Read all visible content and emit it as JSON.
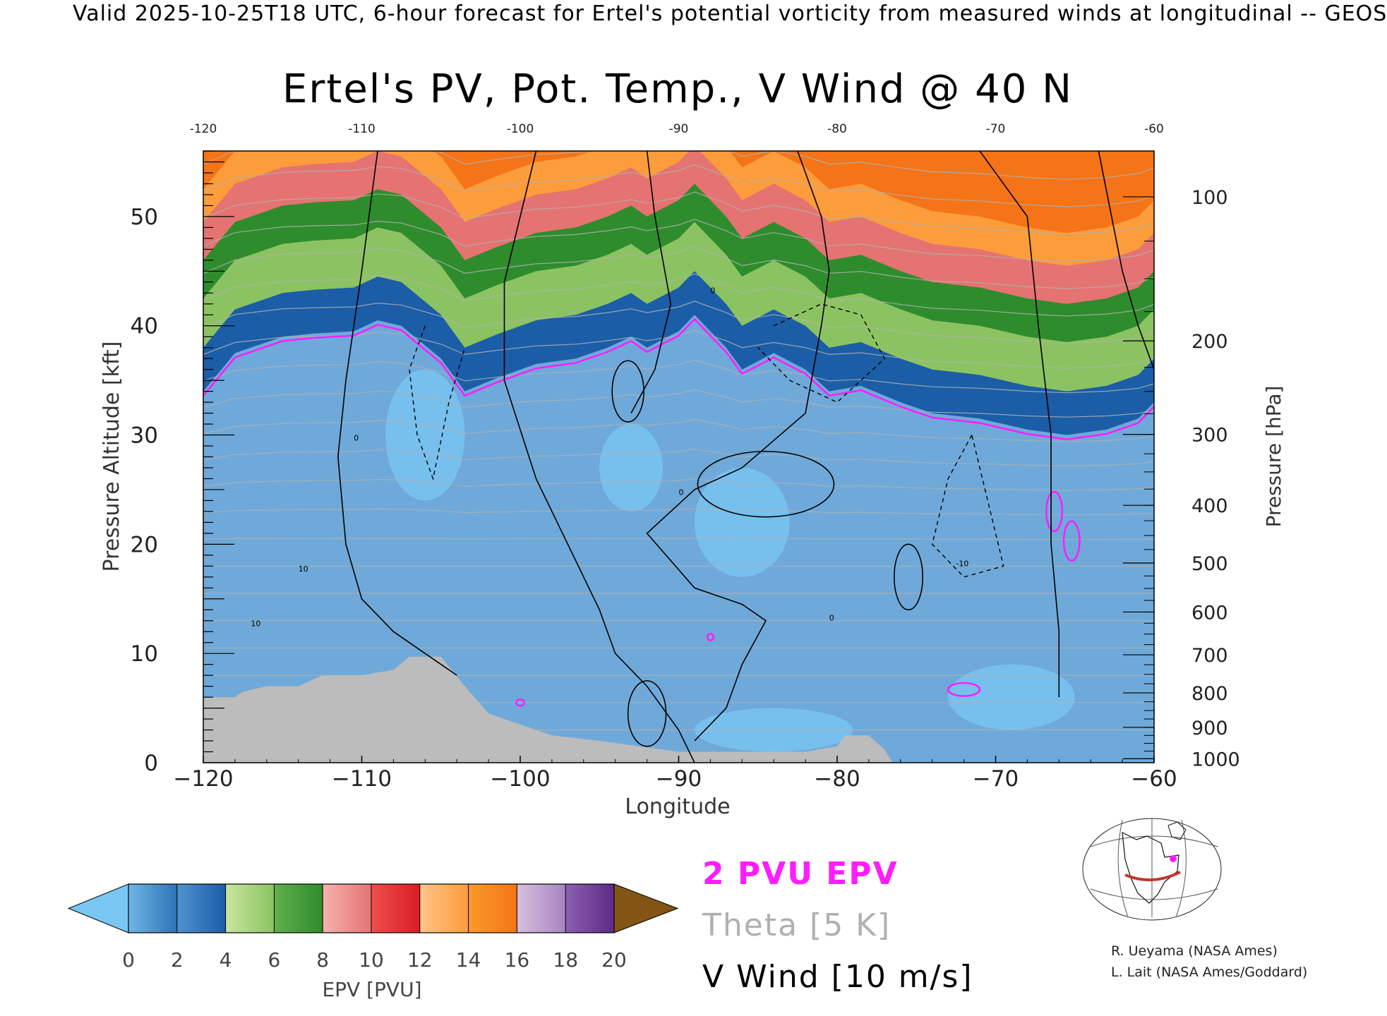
{
  "header": "Valid 2025-10-25T18 UTC, 6-hour forecast for Ertel's potential vorticity from measured winds at longitudinal -- GEOS",
  "chart_data": {
    "type": "heatmap",
    "title": "Ertel's PV, Pot. Temp., V Wind @ 40 N",
    "xlabel": "Longitude",
    "ylabel_left": "Pressure Altitude [kft]",
    "ylabel_right": "Pressure [hPa]",
    "xlim": [
      -120,
      -60
    ],
    "ylim_kft": [
      0,
      56
    ],
    "x_ticks": [
      -120,
      -110,
      -100,
      -90,
      -80,
      -70,
      -60
    ],
    "x_tick_labels": [
      "−120",
      "−110",
      "−100",
      "−90",
      "−80",
      "−70",
      "−60"
    ],
    "top_tick_labels": [
      "-120",
      "-110",
      "-100",
      "-90",
      "-80",
      "-70",
      "-60"
    ],
    "y_ticks_kft": [
      0,
      10,
      20,
      30,
      40,
      50
    ],
    "pressure_ticks": [
      {
        "hpa": 100,
        "label": "100"
      },
      {
        "hpa": 200,
        "label": "200"
      },
      {
        "hpa": 300,
        "label": "300"
      },
      {
        "hpa": 400,
        "label": "400"
      },
      {
        "hpa": 500,
        "label": "500"
      },
      {
        "hpa": 600,
        "label": "600"
      },
      {
        "hpa": 700,
        "label": "700"
      },
      {
        "hpa": 800,
        "label": "800"
      },
      {
        "hpa": 900,
        "label": "900"
      },
      {
        "hpa": 1000,
        "label": "1000"
      }
    ],
    "colorbar": {
      "label": "EPV [PVU]",
      "ticks": [
        "0",
        "2",
        "4",
        "6",
        "8",
        "10",
        "12",
        "14",
        "16",
        "18",
        "20"
      ],
      "below_color": "#79c6f2",
      "above_color": "#835414",
      "bins": [
        [
          "#6fb6e6",
          "#2e74b5"
        ],
        [
          "#4f92cf",
          "#1b5da7"
        ],
        [
          "#c9e6a0",
          "#8cc362"
        ],
        [
          "#62b04d",
          "#2e8c2d"
        ],
        [
          "#f5b3ad",
          "#e57372"
        ],
        [
          "#ef4f4d",
          "#d81e23"
        ],
        [
          "#ffc488",
          "#fd9c3b"
        ],
        [
          "#fb9a2c",
          "#f47417"
        ],
        [
          "#d8bfdc",
          "#a785c2"
        ],
        [
          "#8c5fb1",
          "#5d2b86"
        ],
        [
          "#faf2a4",
          "#f0c57e"
        ],
        [
          "#c7914e",
          "#8a5e20"
        ]
      ]
    },
    "pv_tropopause_kft": [
      [
        -120,
        34
      ],
      [
        -118,
        37.5
      ],
      [
        -115,
        39
      ],
      [
        -113,
        39.3
      ],
      [
        -110.5,
        39.5
      ],
      [
        -109,
        40.5
      ],
      [
        -107.5,
        40
      ],
      [
        -105,
        37
      ],
      [
        -103.5,
        34
      ],
      [
        -101.5,
        35.2
      ],
      [
        -99,
        36.5
      ],
      [
        -96.5,
        37
      ],
      [
        -94.5,
        38
      ],
      [
        -93,
        39
      ],
      [
        -92,
        38
      ],
      [
        -90,
        39.5
      ],
      [
        -89,
        41
      ],
      [
        -87,
        38
      ],
      [
        -86,
        36
      ],
      [
        -84,
        37.5
      ],
      [
        -82,
        36
      ],
      [
        -80.5,
        34
      ],
      [
        -78.5,
        34.5
      ],
      [
        -76,
        33
      ],
      [
        -74,
        32
      ],
      [
        -71,
        31.5
      ],
      [
        -68,
        30.5
      ],
      [
        -65.5,
        30
      ],
      [
        -63,
        30.5
      ],
      [
        -61,
        31.5
      ],
      [
        -60,
        33
      ]
    ],
    "pv_band_offsets_kft": [
      {
        "offset": 0.0,
        "pvu": 2.5
      },
      {
        "offset": 4.0,
        "pvu": 5
      },
      {
        "offset": 8.5,
        "pvu": 7
      },
      {
        "offset": 12.0,
        "pvu": 9
      },
      {
        "offset": 15.5,
        "pvu": 12
      },
      {
        "offset": 18.5,
        "pvu": 15
      }
    ],
    "terrain_kft": [
      [
        -120,
        6
      ],
      [
        -118,
        6
      ],
      [
        -117.5,
        6.5
      ],
      [
        -116,
        7
      ],
      [
        -114,
        7
      ],
      [
        -112.5,
        8
      ],
      [
        -110,
        8
      ],
      [
        -108,
        8.5
      ],
      [
        -107,
        9.7
      ],
      [
        -105,
        9.7
      ],
      [
        -103.5,
        7
      ],
      [
        -102,
        4.5
      ],
      [
        -100,
        3.5
      ],
      [
        -98,
        2.5
      ],
      [
        -95,
        2
      ],
      [
        -90,
        1
      ],
      [
        -85,
        1
      ],
      [
        -82,
        1
      ],
      [
        -80,
        1.5
      ],
      [
        -79.5,
        2.5
      ],
      [
        -78,
        2.5
      ],
      [
        -77,
        1.2
      ],
      [
        -76.5,
        0
      ]
    ],
    "v_wind_contour_labels": [
      "0",
      "10",
      "-10"
    ],
    "legend": {
      "line1": "2 PVU EPV",
      "line2": "Theta [5 K]",
      "line3": "V Wind [10 m/s]",
      "color1": "#ff1cff",
      "color2": "#b0b0b0",
      "color3": "#000000"
    },
    "credits": [
      "R. Ueyama (NASA Ames)",
      "L. Lait (NASA Ames/Goddard)"
    ]
  }
}
